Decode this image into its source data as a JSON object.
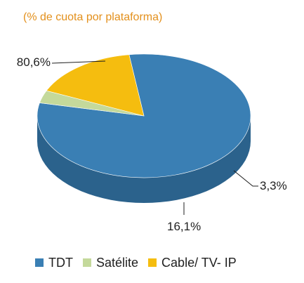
{
  "chart_data": {
    "type": "pie",
    "title": "(% de cuota por plataforma)",
    "categories": [
      "TDT",
      "Satélite",
      "Cable/ TV- IP"
    ],
    "values": [
      80.6,
      3.3,
      16.1
    ],
    "value_labels": [
      "80,6%",
      "3,3%",
      "16,1%"
    ],
    "colors": [
      "#3a7fb4",
      "#c4d99b",
      "#f5bd0f"
    ],
    "side_colors": [
      "#2b628c",
      "#93a56f",
      "#a8780a"
    ],
    "legend": {
      "position": "bottom"
    },
    "style": "3d-pie"
  }
}
